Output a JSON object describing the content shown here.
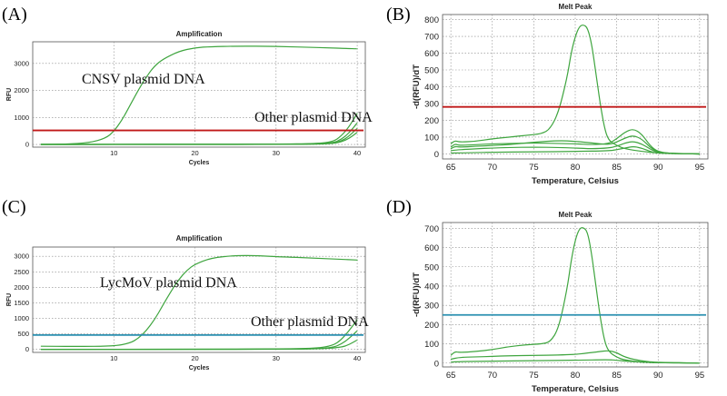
{
  "panel_labels": [
    "(A)",
    "(B)",
    "(C)",
    "(D)"
  ],
  "chart_data": [
    {
      "type": "line",
      "title": "Amplification",
      "xlabel": "Cycles",
      "ylabel": "RFU",
      "xlim": [
        0,
        41
      ],
      "ylim": [
        -100,
        3800
      ],
      "xticks": [
        "10",
        "20",
        "30",
        "40"
      ],
      "yticks": [
        "0",
        "1000",
        "2000",
        "3000"
      ],
      "grid": true,
      "annotations": [
        "CNSV plasmid DNA",
        "Other plasmid DNA"
      ],
      "threshold": {
        "value": 520,
        "color": "#c01818"
      },
      "series": [
        {
          "x": [
            1,
            4,
            7,
            9,
            10,
            11,
            12,
            13,
            14,
            15,
            16,
            18,
            20,
            22,
            25,
            30,
            35,
            40
          ],
          "values": [
            0,
            10,
            60,
            230,
            480,
            900,
            1450,
            2000,
            2500,
            2900,
            3150,
            3450,
            3580,
            3620,
            3640,
            3630,
            3590,
            3540
          ]
        },
        {
          "x": [
            1,
            10,
            20,
            30,
            35,
            37,
            38,
            39,
            40
          ],
          "values": [
            0,
            5,
            5,
            10,
            30,
            100,
            300,
            650,
            1150
          ]
        },
        {
          "x": [
            1,
            10,
            20,
            30,
            35,
            37,
            38,
            39,
            40
          ],
          "values": [
            0,
            5,
            5,
            8,
            20,
            60,
            180,
            420,
            800
          ]
        },
        {
          "x": [
            1,
            10,
            20,
            30,
            35,
            37,
            38,
            39,
            40
          ],
          "values": [
            0,
            0,
            0,
            5,
            15,
            40,
            120,
            300,
            600
          ]
        },
        {
          "x": [
            1,
            10,
            20,
            30,
            35,
            37,
            38,
            39,
            40
          ],
          "values": [
            0,
            0,
            0,
            0,
            10,
            30,
            90,
            220,
            450
          ]
        }
      ],
      "line_color": "#3fa53f"
    },
    {
      "type": "line",
      "title": "Melt Peak",
      "xlabel": "Temperature, Celsius",
      "ylabel": "-d(RFU)/dT",
      "xlim": [
        64,
        96
      ],
      "ylim": [
        -30,
        830
      ],
      "xticks": [
        "65",
        "70",
        "75",
        "80",
        "85",
        "90",
        "95"
      ],
      "yticks": [
        "0",
        "100",
        "200",
        "300",
        "400",
        "500",
        "600",
        "700",
        "800"
      ],
      "grid": true,
      "threshold": {
        "value": 280,
        "color": "#c01818"
      },
      "series": [
        {
          "x": [
            65,
            65.5,
            66,
            68,
            70,
            72,
            74,
            76,
            77,
            78,
            79,
            79.5,
            80,
            80.5,
            81,
            81.5,
            82,
            82.5,
            83,
            83.5,
            84,
            85,
            86,
            88,
            90,
            92,
            95
          ],
          "values": [
            60,
            80,
            70,
            75,
            90,
            100,
            110,
            120,
            150,
            250,
            450,
            600,
            700,
            760,
            770,
            750,
            650,
            480,
            300,
            160,
            80,
            50,
            30,
            15,
            5,
            2,
            0
          ]
        },
        {
          "x": [
            65,
            65.5,
            66,
            68,
            70,
            72,
            75,
            78,
            80,
            82,
            84,
            85,
            86,
            87,
            88,
            89,
            90,
            92,
            95
          ],
          "values": [
            40,
            60,
            50,
            55,
            60,
            62,
            65,
            62,
            60,
            55,
            60,
            90,
            130,
            150,
            120,
            50,
            10,
            2,
            0
          ]
        },
        {
          "x": [
            65,
            65.5,
            66,
            68,
            70,
            72,
            75,
            78,
            80,
            82,
            84,
            85,
            86,
            87,
            88,
            89,
            90,
            92,
            95
          ],
          "values": [
            30,
            45,
            40,
            45,
            50,
            55,
            70,
            80,
            75,
            65,
            55,
            70,
            95,
            110,
            90,
            40,
            8,
            2,
            0
          ]
        },
        {
          "x": [
            65,
            66,
            68,
            70,
            72,
            75,
            78,
            80,
            82,
            84,
            85,
            86,
            87,
            88,
            89,
            90,
            95
          ],
          "values": [
            20,
            25,
            30,
            35,
            38,
            40,
            38,
            35,
            30,
            35,
            45,
            65,
            75,
            60,
            30,
            5,
            0
          ]
        },
        {
          "x": [
            65,
            68,
            70,
            75,
            80,
            84,
            85,
            86,
            87,
            88,
            89,
            90,
            95
          ],
          "values": [
            5,
            8,
            10,
            12,
            15,
            18,
            25,
            35,
            45,
            35,
            15,
            3,
            0
          ]
        }
      ],
      "line_color": "#3fa53f"
    },
    {
      "type": "line",
      "title": "Amplification",
      "xlabel": "Cycles",
      "ylabel": "RFU",
      "xlim": [
        0,
        41
      ],
      "ylim": [
        -100,
        3300
      ],
      "xticks": [
        "10",
        "20",
        "30",
        "40"
      ],
      "yticks": [
        "0",
        "500",
        "1000",
        "1500",
        "2000",
        "2500",
        "3000"
      ],
      "grid": true,
      "annotations": [
        "LycMoV plasmid DNA",
        "Other plasmid DNA"
      ],
      "threshold": {
        "value": 460,
        "color": "#2a8fb0"
      },
      "series": [
        {
          "x": [
            1,
            5,
            10,
            12,
            13,
            14,
            15,
            16,
            17,
            18,
            19,
            20,
            22,
            25,
            28,
            30,
            35,
            40
          ],
          "values": [
            100,
            90,
            100,
            200,
            350,
            600,
            950,
            1400,
            1850,
            2250,
            2550,
            2750,
            2950,
            3030,
            3020,
            2990,
            2940,
            2880
          ]
        },
        {
          "x": [
            1,
            10,
            20,
            30,
            35,
            37,
            38,
            39,
            40
          ],
          "values": [
            0,
            0,
            5,
            10,
            30,
            120,
            300,
            600,
            950
          ]
        },
        {
          "x": [
            1,
            10,
            20,
            30,
            35,
            37,
            38,
            39,
            40
          ],
          "values": [
            0,
            0,
            0,
            5,
            15,
            60,
            160,
            350,
            600
          ]
        },
        {
          "x": [
            1,
            10,
            20,
            30,
            35,
            38,
            39,
            40
          ],
          "values": [
            0,
            0,
            0,
            0,
            10,
            60,
            150,
            300
          ]
        }
      ],
      "line_color": "#3fa53f"
    },
    {
      "type": "line",
      "title": "Melt Peak",
      "xlabel": "Temperature, Celsius",
      "ylabel": "-d(RFU)/dT",
      "xlim": [
        64,
        96
      ],
      "ylim": [
        -20,
        730
      ],
      "xticks": [
        "65",
        "70",
        "75",
        "80",
        "85",
        "90",
        "95"
      ],
      "yticks": [
        "0",
        "100",
        "200",
        "300",
        "400",
        "500",
        "600",
        "700"
      ],
      "grid": true,
      "threshold": {
        "value": 250,
        "color": "#2a8fb0"
      },
      "series": [
        {
          "x": [
            65,
            65.5,
            66,
            68,
            70,
            72,
            74,
            76,
            77,
            78,
            79,
            79.5,
            80,
            80.5,
            81,
            81.5,
            82,
            82.5,
            83,
            83.5,
            84,
            85,
            86,
            88,
            90,
            95
          ],
          "values": [
            40,
            60,
            55,
            60,
            70,
            85,
            95,
            100,
            110,
            180,
            380,
            530,
            640,
            700,
            705,
            680,
            560,
            400,
            240,
            120,
            60,
            30,
            15,
            5,
            2,
            0
          ]
        },
        {
          "x": [
            65,
            66,
            68,
            70,
            72,
            75,
            78,
            80,
            81,
            82,
            83,
            84,
            85,
            86,
            88,
            90,
            95
          ],
          "values": [
            20,
            30,
            32,
            35,
            38,
            40,
            42,
            45,
            50,
            55,
            60,
            65,
            55,
            30,
            10,
            3,
            0
          ]
        },
        {
          "x": [
            65,
            66,
            70,
            75,
            80,
            84,
            85,
            86,
            88,
            90,
            95
          ],
          "values": [
            5,
            8,
            10,
            12,
            15,
            18,
            15,
            10,
            5,
            2,
            0
          ]
        }
      ],
      "line_color": "#3fa53f"
    }
  ]
}
